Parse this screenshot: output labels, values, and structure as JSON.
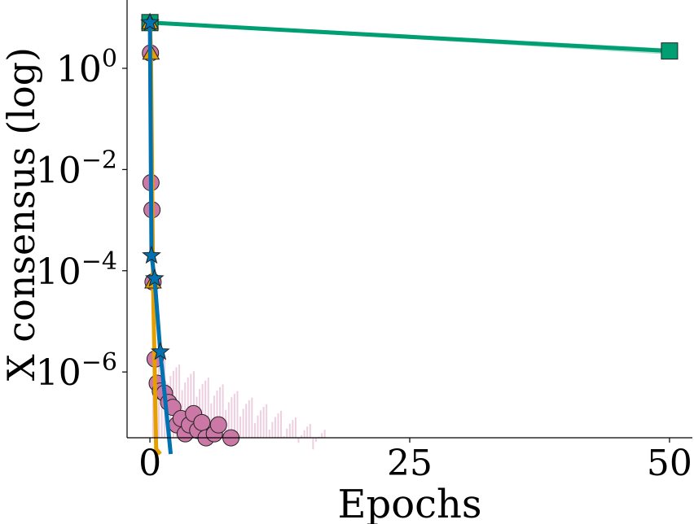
{
  "chart_data": {
    "type": "line",
    "title": "",
    "xlabel": "Epochs",
    "ylabel": "X consensus (log)",
    "xlim": [
      -2.2,
      52.2
    ],
    "ylim_log10": [
      -7.3,
      1.35
    ],
    "y_scale": "log",
    "grid": false,
    "legend": "none",
    "x_ticks": [
      0,
      25,
      50
    ],
    "x_tick_labels": [
      "0",
      "25",
      "50"
    ],
    "y_ticks_log10": [
      0,
      -2,
      -4,
      -6
    ],
    "y_tick_bases": [
      "10",
      "10",
      "10",
      "10"
    ],
    "y_tick_exponents": [
      "0",
      "−2",
      "−4",
      "−6"
    ],
    "series": [
      {
        "color": "#cc78a7",
        "marker": "circle",
        "line": false,
        "band": true,
        "x": [
          0.05,
          0.1,
          0.2,
          0.3,
          0.5,
          0.7,
          1.0,
          1.4,
          1.8,
          2.2,
          2.6,
          3.0,
          3.4,
          3.8,
          4.2,
          4.6,
          5.0,
          5.4,
          5.8,
          6.2,
          6.6,
          7.0,
          7.4,
          7.8,
          8.2,
          8.6,
          9.0,
          9.4,
          9.8,
          10.2,
          10.6,
          11.0,
          11.4,
          11.8,
          12.2,
          12.6,
          13.0,
          13.4,
          13.8,
          14.2,
          14.6,
          15.0,
          15.4,
          15.8
        ],
        "y": [
          2.0,
          0.0055,
          0.0016,
          6e-05,
          1.8e-06,
          6e-07,
          4.2e-07,
          3.8e-07,
          2.5e-07,
          2e-07,
          9e-08,
          1.2e-07,
          6e-08,
          9e-08,
          1.5e-07,
          7e-08,
          1e-07,
          5e-08,
          3.5e-08,
          6e-08,
          9e-08,
          3.5e-08,
          2.5e-08,
          5e-08,
          3.5e-08,
          2.5e-08,
          2e-08,
          2.5e-08,
          2e-08,
          2e-08,
          2e-08,
          1.2e-08,
          2e-08,
          1.2e-08,
          1.2e-08,
          1.2e-08,
          2e-08,
          1.2e-08,
          1.2e-08,
          1.2e-08,
          1.2e-08,
          1.2e-08,
          1.2e-08,
          1.2e-08
        ]
      },
      {
        "color": "#e69f00",
        "marker": "triangle",
        "line": true,
        "x": [
          0.0,
          0.1,
          0.3,
          0.6,
          1.0
        ],
        "y": [
          8.0,
          2.0,
          6e-05,
          3e-08,
          1.2e-08
        ]
      },
      {
        "color": "#0072b2",
        "marker": "star",
        "line": true,
        "x": [
          0.0,
          0.15,
          0.45,
          1.0,
          2.0
        ],
        "y": [
          8.0,
          0.0002,
          7e-05,
          2.5e-06,
          1.2e-08
        ]
      },
      {
        "color": "#009e73",
        "marker": "square",
        "line": true,
        "band": true,
        "x": [
          0,
          50
        ],
        "y": [
          8.0,
          2.2
        ]
      }
    ]
  }
}
